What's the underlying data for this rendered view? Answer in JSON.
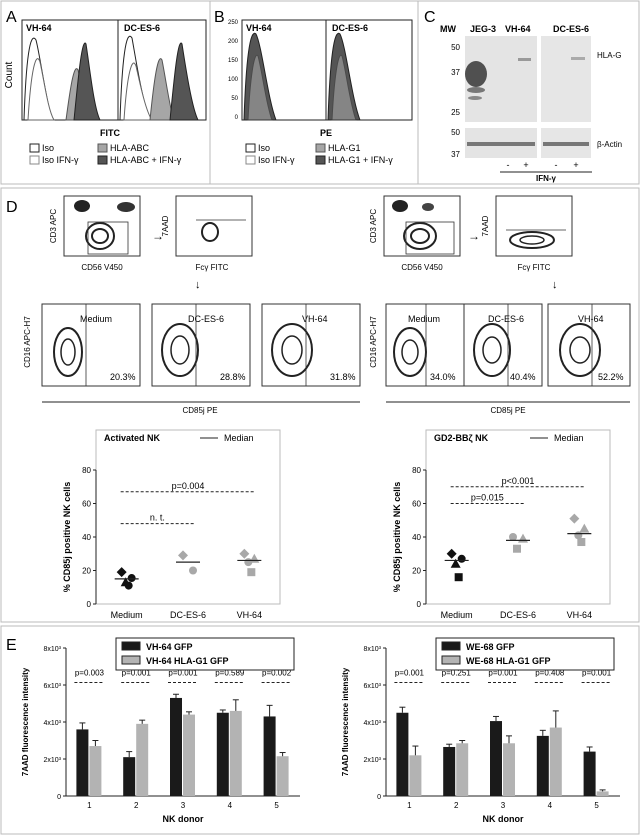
{
  "panelA": {
    "letter": "A",
    "left_title": "VH-64",
    "right_title": "DC-ES-6",
    "ylabel": "Count",
    "xlabel": "FITC",
    "legend": [
      "Iso",
      "Iso IFN-γ",
      "HLA-ABC",
      "HLA-ABC + IFN-γ"
    ],
    "colors": {
      "iso": "#ffffff",
      "iso_ifn": "#ffffff",
      "hla": "#a6a6a6",
      "hla_ifn": "#555555"
    }
  },
  "panelB": {
    "letter": "B",
    "left_title": "VH-64",
    "right_title": "DC-ES-6",
    "xlabel": "PE",
    "yticks": [
      "250",
      "200",
      "150",
      "100",
      "50",
      "0"
    ],
    "legend": [
      "Iso",
      "Iso IFN-γ",
      "HLA-G1",
      "HLA-G1 + IFN-γ"
    ]
  },
  "panelC": {
    "letter": "C",
    "mw_label": "MW",
    "lanes": [
      "JEG-3",
      "VH-64",
      "DC-ES-6"
    ],
    "mw_upper": [
      "50",
      "37",
      "25"
    ],
    "mw_lower": [
      "50",
      "37"
    ],
    "band_upper": "HLA-G",
    "band_lower": "β-Actin",
    "treatment": [
      "-",
      "+",
      "-",
      "+"
    ],
    "treatment_label": "IFN-γ"
  },
  "panelD": {
    "letter": "D",
    "left": {
      "gate_x": "CD56 V450",
      "gate_y": "CD3 APC",
      "fc_x": "Fcγ FITC",
      "fc_y": "7AAD",
      "plots": [
        {
          "title": "Medium",
          "pct": "20.3%"
        },
        {
          "title": "DC-ES-6",
          "pct": "28.8%"
        },
        {
          "title": "VH-64",
          "pct": "31.8%"
        }
      ],
      "xlabel": "CD85j PE",
      "ylabel": "CD16 APC-H7"
    },
    "right": {
      "gate_x": "CD56 V450",
      "gate_y": "CD3 APC",
      "fc_x": "Fcγ FITC",
      "fc_y": "7AAD",
      "plots": [
        {
          "title": "Medium",
          "pct": "34.0%"
        },
        {
          "title": "DC-ES-6",
          "pct": "40.4%"
        },
        {
          "title": "VH-64",
          "pct": "52.2%"
        }
      ],
      "xlabel": "CD85j PE",
      "ylabel": "CD16 APC-H7"
    }
  },
  "chart_data": [
    {
      "type": "scatter",
      "title": "Activated NK",
      "legend": "Median",
      "ylabel": "% CD85j positive NK cells",
      "categories": [
        "Medium",
        "DC-ES-6",
        "VH-64"
      ],
      "ylim": [
        0,
        80
      ],
      "yticks": [
        0,
        20,
        40,
        60,
        80
      ],
      "points": [
        {
          "cat": 0,
          "y": 19,
          "shape": "diamond",
          "color": "#111111"
        },
        {
          "cat": 0,
          "y": 15.5,
          "shape": "circle",
          "color": "#111111"
        },
        {
          "cat": 0,
          "y": 13,
          "shape": "triangle",
          "color": "#111111"
        },
        {
          "cat": 0,
          "y": 11,
          "shape": "circle",
          "color": "#111111"
        },
        {
          "cat": 1,
          "y": 29,
          "shape": "diamond",
          "color": "#a8a8a8"
        },
        {
          "cat": 1,
          "y": 20,
          "shape": "circle",
          "color": "#a8a8a8"
        },
        {
          "cat": 2,
          "y": 30,
          "shape": "diamond",
          "color": "#a8a8a8"
        },
        {
          "cat": 2,
          "y": 27,
          "shape": "triangle",
          "color": "#a8a8a8"
        },
        {
          "cat": 2,
          "y": 25,
          "shape": "circle",
          "color": "#a8a8a8"
        },
        {
          "cat": 2,
          "y": 19,
          "shape": "square",
          "color": "#a8a8a8"
        }
      ],
      "medians": [
        15,
        25,
        26
      ],
      "brackets": [
        {
          "from": 0,
          "to": 1,
          "y": 48,
          "label": "n. t."
        },
        {
          "from": 0,
          "to": 2,
          "y": 67,
          "label": "p=0.004"
        }
      ]
    },
    {
      "type": "scatter",
      "title": "GD2-BBζ NK",
      "legend": "Median",
      "ylabel": "% CD85j positive NK cells",
      "categories": [
        "Medium",
        "DC-ES-6",
        "VH-64"
      ],
      "ylim": [
        0,
        80
      ],
      "yticks": [
        0,
        20,
        40,
        60,
        80
      ],
      "points": [
        {
          "cat": 0,
          "y": 30,
          "shape": "diamond",
          "color": "#111111"
        },
        {
          "cat": 0,
          "y": 27,
          "shape": "circle",
          "color": "#111111"
        },
        {
          "cat": 0,
          "y": 24,
          "shape": "triangle",
          "color": "#111111"
        },
        {
          "cat": 0,
          "y": 16,
          "shape": "square",
          "color": "#111111"
        },
        {
          "cat": 1,
          "y": 40,
          "shape": "circle",
          "color": "#a8a8a8"
        },
        {
          "cat": 1,
          "y": 39,
          "shape": "triangle",
          "color": "#a8a8a8"
        },
        {
          "cat": 1,
          "y": 33,
          "shape": "square",
          "color": "#a8a8a8"
        },
        {
          "cat": 2,
          "y": 51,
          "shape": "diamond",
          "color": "#a8a8a8"
        },
        {
          "cat": 2,
          "y": 45,
          "shape": "triangle",
          "color": "#a8a8a8"
        },
        {
          "cat": 2,
          "y": 41,
          "shape": "circle",
          "color": "#a8a8a8"
        },
        {
          "cat": 2,
          "y": 37,
          "shape": "square",
          "color": "#a8a8a8"
        }
      ],
      "medians": [
        26,
        38,
        42
      ],
      "brackets": [
        {
          "from": 0,
          "to": 1,
          "y": 60,
          "label": "p=0.015"
        },
        {
          "from": 0,
          "to": 2,
          "y": 70,
          "label": "p<0.001"
        }
      ]
    },
    {
      "type": "bar",
      "letter": "E",
      "ylabel": "7AAD fluorescence intensity",
      "xlabel": "NK donor",
      "categories": [
        "1",
        "2",
        "3",
        "4",
        "5"
      ],
      "ylim": [
        0,
        8000
      ],
      "yticks": [
        "0",
        "2x10³",
        "4x10³",
        "6x10³",
        "8x10³"
      ],
      "series": [
        {
          "name": "VH-64 GFP",
          "color": "#1a1a1a",
          "values": [
            3600,
            2100,
            5300,
            4500,
            4300
          ],
          "errors": [
            350,
            300,
            200,
            150,
            600
          ]
        },
        {
          "name": "VH-64 HLA-G1 GFP",
          "color": "#b3b3b3",
          "values": [
            2700,
            3900,
            4400,
            4600,
            2150
          ],
          "errors": [
            300,
            200,
            150,
            600,
            200
          ]
        }
      ],
      "pvalues": [
        "p=0.003",
        "p=0.001",
        "p=0.001",
        "p=0.589",
        "p=0.002"
      ]
    },
    {
      "type": "bar",
      "ylabel": "7AAD fluorescence intensity",
      "xlabel": "NK donor",
      "categories": [
        "1",
        "2",
        "3",
        "4",
        "5"
      ],
      "ylim": [
        0,
        8000
      ],
      "yticks": [
        "0",
        "2x10³",
        "4x10³",
        "6x10³",
        "8x10³"
      ],
      "series": [
        {
          "name": "WE-68 GFP",
          "color": "#1a1a1a",
          "values": [
            4500,
            2650,
            4050,
            3250,
            2400
          ],
          "errors": [
            300,
            150,
            250,
            300,
            250
          ]
        },
        {
          "name": "WE-68 HLA-G1 GFP",
          "color": "#b3b3b3",
          "values": [
            2200,
            2850,
            2850,
            3700,
            250
          ],
          "errors": [
            500,
            150,
            400,
            900,
            80
          ]
        }
      ],
      "pvalues": [
        "p=0.001",
        "p=0.251",
        "p=0.001",
        "p=0.408",
        "p=0.001"
      ]
    }
  ]
}
